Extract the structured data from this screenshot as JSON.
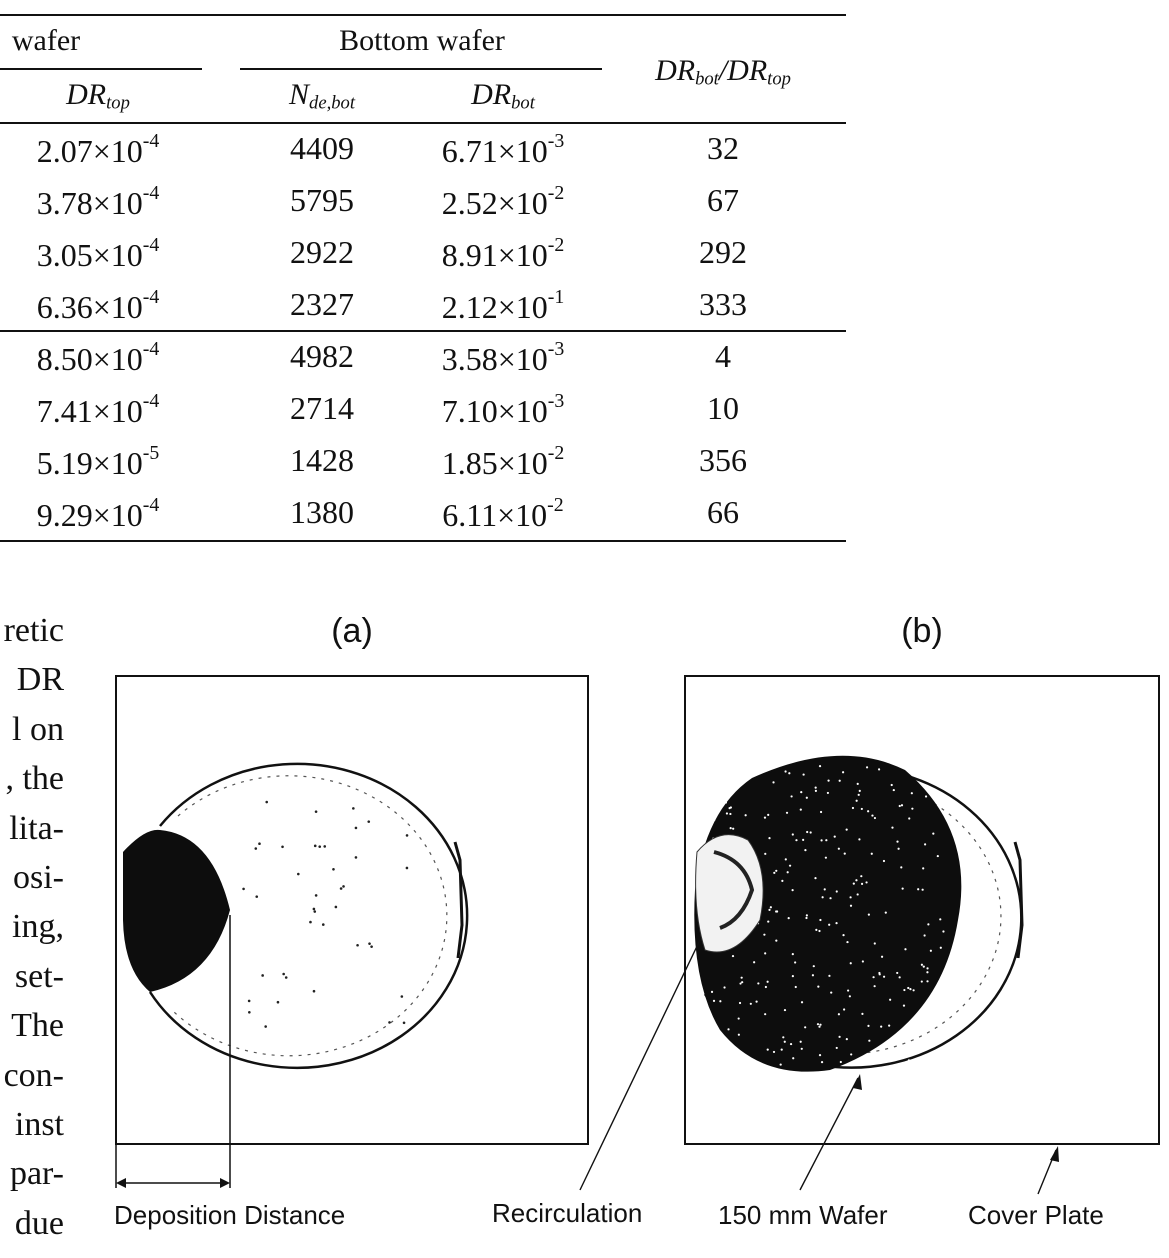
{
  "table": {
    "header": {
      "top_group": "wafer",
      "bottom_group": "Bottom wafer",
      "col_top_dr": "DR",
      "col_top_dr_sub": "top",
      "col_n_de": "N",
      "col_n_de_sub": "de,bot",
      "col_bot_dr": "DR",
      "col_bot_dr_sub": "bot",
      "col_ratio_a": "DR",
      "col_ratio_a_sub": "bot",
      "col_ratio_slash": "/DR",
      "col_ratio_b_sub": "top"
    },
    "times": "×10",
    "rows": [
      {
        "dr_top_m": "2.07",
        "dr_top_e": "-4",
        "n_de_bot": "4409",
        "dr_bot_m": "6.71",
        "dr_bot_e": "-3",
        "ratio": "32"
      },
      {
        "dr_top_m": "3.78",
        "dr_top_e": "-4",
        "n_de_bot": "5795",
        "dr_bot_m": "2.52",
        "dr_bot_e": "-2",
        "ratio": "67"
      },
      {
        "dr_top_m": "3.05",
        "dr_top_e": "-4",
        "n_de_bot": "2922",
        "dr_bot_m": "8.91",
        "dr_bot_e": "-2",
        "ratio": "292"
      },
      {
        "dr_top_m": "6.36",
        "dr_top_e": "-4",
        "n_de_bot": "2327",
        "dr_bot_m": "2.12",
        "dr_bot_e": "-1",
        "ratio": "333"
      },
      {
        "dr_top_m": "8.50",
        "dr_top_e": "-4",
        "n_de_bot": "4982",
        "dr_bot_m": "3.58",
        "dr_bot_e": "-3",
        "ratio": "4"
      },
      {
        "dr_top_m": "7.41",
        "dr_top_e": "-4",
        "n_de_bot": "2714",
        "dr_bot_m": "7.10",
        "dr_bot_e": "-3",
        "ratio": "10"
      },
      {
        "dr_top_m": "5.19",
        "dr_top_e": "-5",
        "n_de_bot": "1428",
        "dr_bot_m": "1.85",
        "dr_bot_e": "-2",
        "ratio": "356"
      },
      {
        "dr_top_m": "9.29",
        "dr_top_e": "-4",
        "n_de_bot": "1380",
        "dr_bot_m": "6.11",
        "dr_bot_e": "-2",
        "ratio": "66"
      }
    ]
  },
  "body_text_fragments": [
    "retic",
    "DR",
    "l on",
    ", the",
    "lita-",
    "osi-",
    "ing,",
    "set-",
    "The",
    "con-",
    "inst",
    "par-",
    "due"
  ],
  "figure": {
    "panel_a_label": "(a)",
    "panel_b_label": "(b)",
    "captions": {
      "deposition_distance": "Deposition Distance",
      "recirculation": "Recirculation",
      "wafer": "150 mm Wafer",
      "cover_plate": "Cover Plate"
    }
  }
}
